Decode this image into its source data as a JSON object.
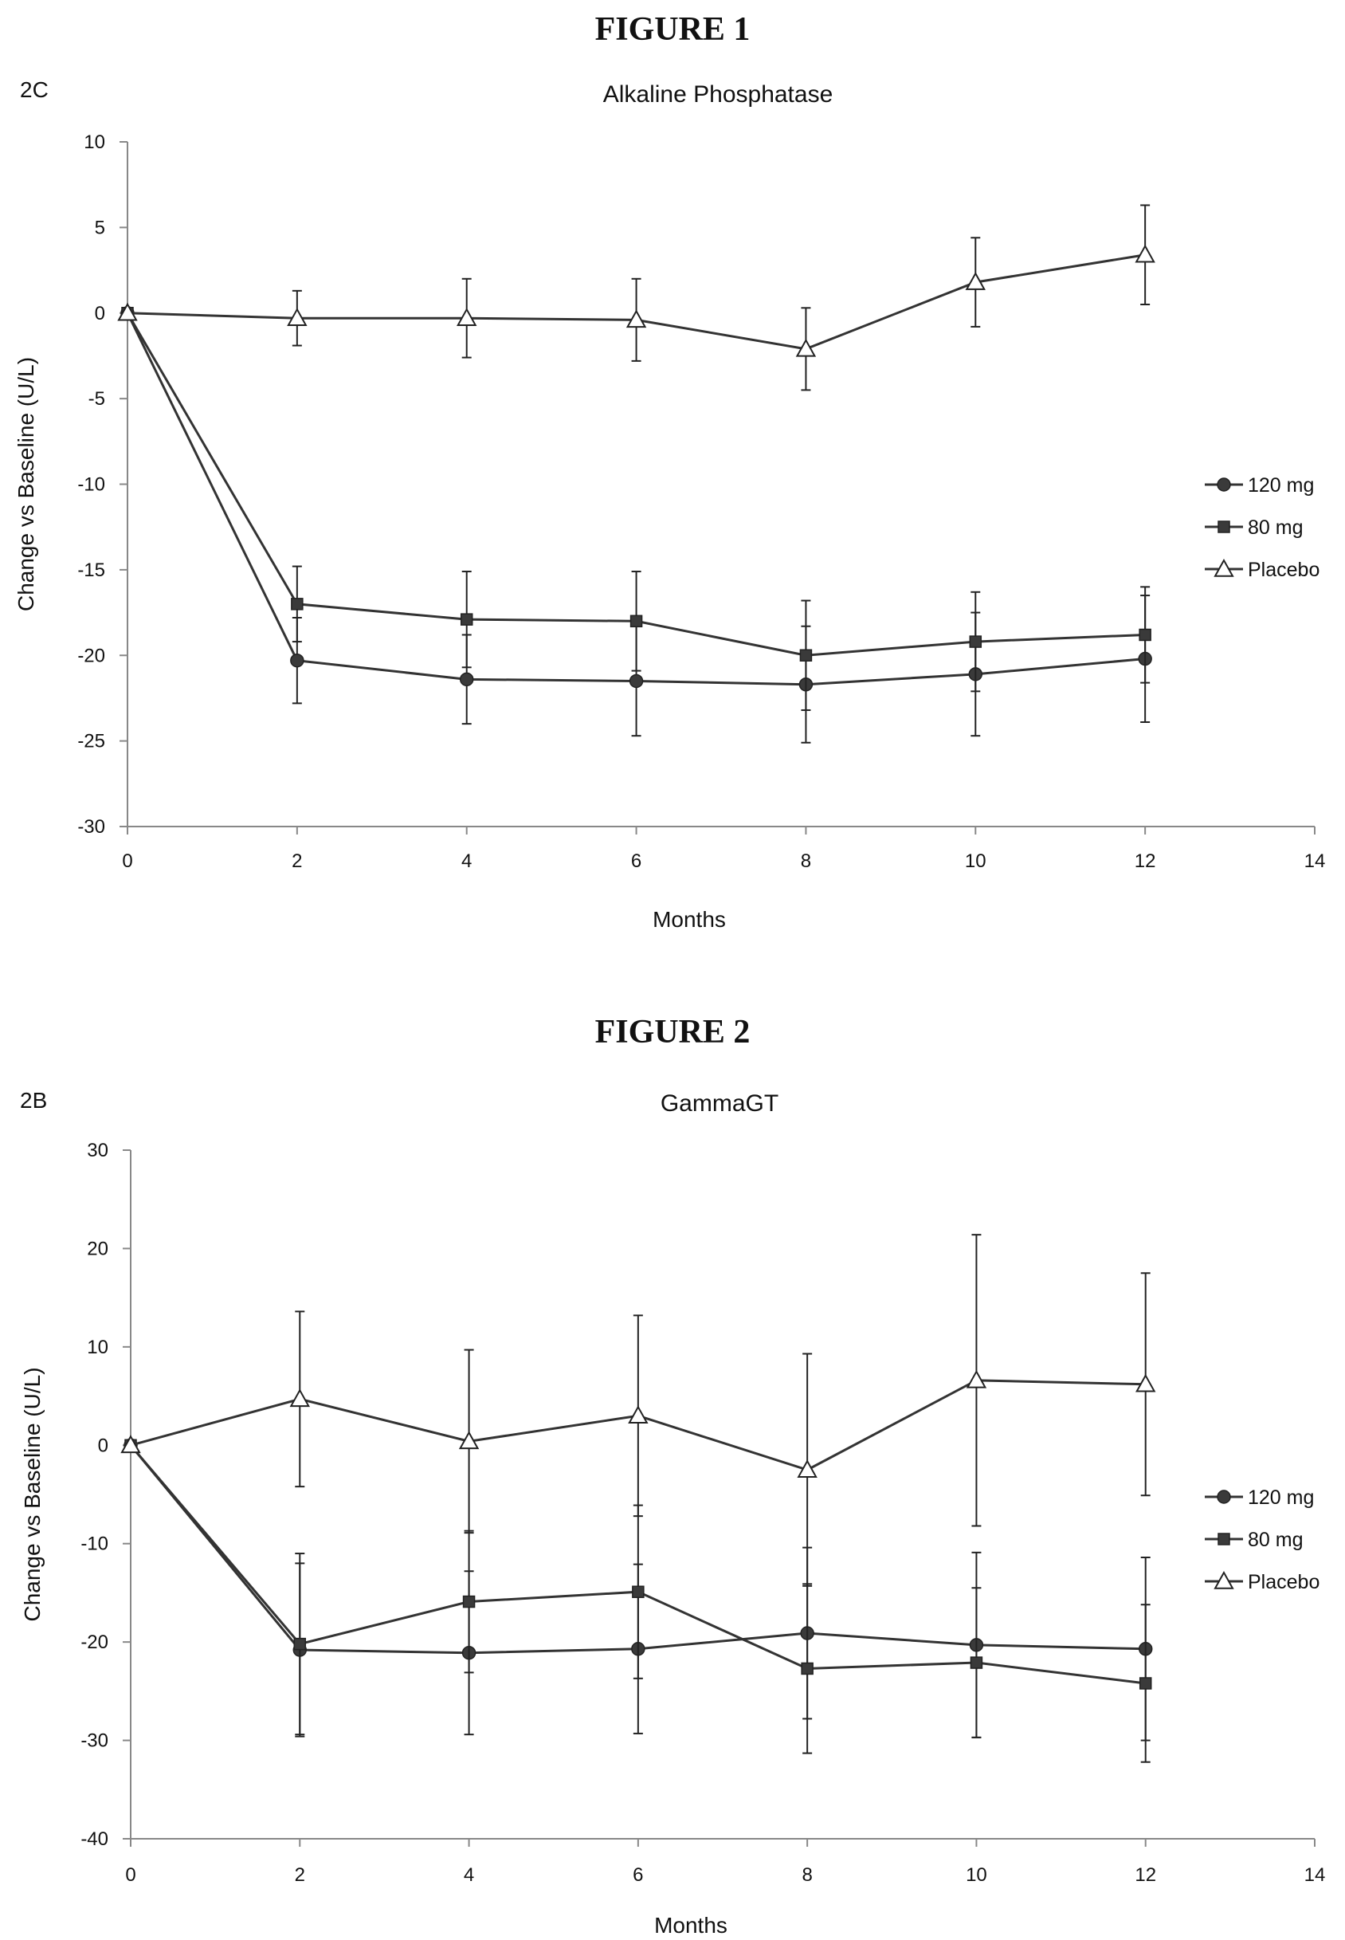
{
  "figures": [
    {
      "figure_title": "FIGURE 1",
      "panel_label": "2C"
    },
    {
      "figure_title": "FIGURE 2",
      "panel_label": "2B"
    }
  ],
  "chart_data": [
    {
      "type": "line",
      "title": "Alkaline Phosphatase",
      "xlabel": "Months",
      "ylabel": "Change vs Baseline (U/L)",
      "xlim": [
        0,
        14
      ],
      "ylim": [
        -30,
        10
      ],
      "xticks": [
        0,
        2,
        4,
        6,
        8,
        10,
        12,
        14
      ],
      "yticks": [
        10,
        5,
        0,
        -5,
        -10,
        -15,
        -20,
        -25,
        -30
      ],
      "legend_position": "right",
      "x": [
        0,
        2,
        4,
        6,
        8,
        10,
        12
      ],
      "series": [
        {
          "name": "120 mg",
          "marker": "circle",
          "values": [
            0,
            -20.3,
            -21.4,
            -21.5,
            -21.7,
            -21.1,
            -20.2
          ],
          "error": [
            0,
            2.5,
            2.6,
            3.2,
            3.4,
            3.6,
            3.7
          ]
        },
        {
          "name": "80 mg",
          "marker": "square",
          "values": [
            0,
            -17.0,
            -17.9,
            -18.0,
            -20.0,
            -19.2,
            -18.8
          ],
          "error": [
            0,
            2.2,
            2.8,
            2.9,
            3.2,
            2.9,
            2.8
          ]
        },
        {
          "name": "Placebo",
          "marker": "triangle",
          "values": [
            0,
            -0.3,
            -0.3,
            -0.4,
            -2.1,
            1.8,
            3.4
          ],
          "error": [
            0,
            1.6,
            2.3,
            2.4,
            2.4,
            2.6,
            2.9
          ]
        }
      ]
    },
    {
      "type": "line",
      "title": "GammaGT",
      "xlabel": "Months",
      "ylabel": "Change vs Baseline (U/L)",
      "xlim": [
        0,
        14
      ],
      "ylim": [
        -40,
        30
      ],
      "xticks": [
        0,
        2,
        4,
        6,
        8,
        10,
        12,
        14
      ],
      "yticks": [
        30,
        20,
        10,
        0,
        -10,
        -20,
        -30,
        -40
      ],
      "legend_position": "right",
      "x": [
        0,
        2,
        4,
        6,
        8,
        10,
        12
      ],
      "series": [
        {
          "name": "120 mg",
          "marker": "circle",
          "values": [
            0,
            -20.8,
            -21.1,
            -20.7,
            -19.1,
            -20.3,
            -20.7
          ],
          "error": [
            0,
            8.8,
            8.3,
            8.6,
            8.7,
            9.4,
            9.3
          ]
        },
        {
          "name": "80 mg",
          "marker": "square",
          "values": [
            0,
            -20.2,
            -15.9,
            -14.9,
            -22.7,
            -22.1,
            -24.2
          ],
          "error": [
            0,
            9.2,
            7.2,
            8.8,
            8.6,
            7.6,
            8.0
          ]
        },
        {
          "name": "Placebo",
          "marker": "triangle",
          "values": [
            0,
            4.7,
            0.4,
            3.0,
            -2.5,
            6.6,
            6.2
          ],
          "error": [
            0,
            8.9,
            9.3,
            10.2,
            11.8,
            14.8,
            11.3
          ]
        }
      ]
    }
  ]
}
